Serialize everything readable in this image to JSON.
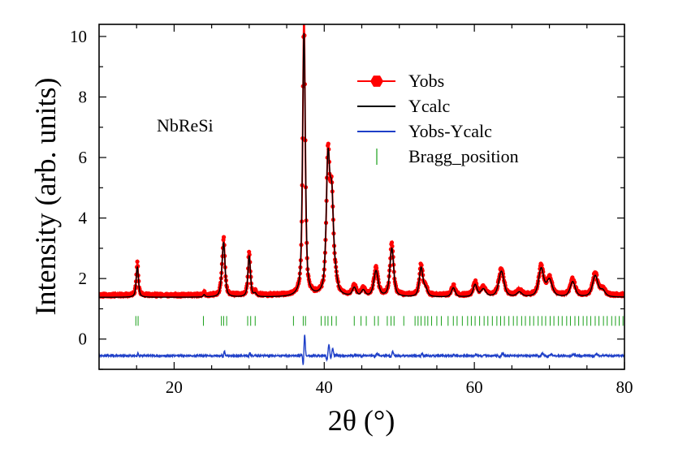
{
  "chart_data": {
    "type": "line",
    "title": "",
    "xlabel": "2θ (°)",
    "ylabel": "Intensity (arb. units)",
    "xlim": [
      10,
      80
    ],
    "ylim": [
      -1,
      10.4
    ],
    "xticks": [
      20,
      40,
      60,
      80
    ],
    "yticks": [
      0,
      2,
      4,
      6,
      8,
      10
    ],
    "annotation": "NbReSi",
    "legend_position": "top-right",
    "baseline": {
      "obs": 1.45,
      "calc": 1.38,
      "diff": -0.55
    },
    "peaks": [
      {
        "x": 15.1,
        "height": 1.0,
        "width": 0.18
      },
      {
        "x": 24.0,
        "height": 0.08,
        "width": 0.15
      },
      {
        "x": 26.3,
        "height": 0.2,
        "width": 0.2
      },
      {
        "x": 26.6,
        "height": 1.75,
        "width": 0.22
      },
      {
        "x": 30.0,
        "height": 1.35,
        "width": 0.2
      },
      {
        "x": 30.8,
        "height": 0.1,
        "width": 0.2
      },
      {
        "x": 37.3,
        "height": 8.7,
        "width": 0.22
      },
      {
        "x": 40.5,
        "height": 4.3,
        "width": 0.28
      },
      {
        "x": 41.0,
        "height": 2.9,
        "width": 0.28
      },
      {
        "x": 41.5,
        "height": 0.4,
        "width": 0.3
      },
      {
        "x": 44.0,
        "height": 0.28,
        "width": 0.3
      },
      {
        "x": 45.2,
        "height": 0.2,
        "width": 0.3
      },
      {
        "x": 46.9,
        "height": 0.85,
        "width": 0.35
      },
      {
        "x": 49.0,
        "height": 1.6,
        "width": 0.3
      },
      {
        "x": 52.9,
        "height": 0.95,
        "width": 0.28
      },
      {
        "x": 53.5,
        "height": 0.25,
        "width": 0.3
      },
      {
        "x": 57.2,
        "height": 0.3,
        "width": 0.3
      },
      {
        "x": 60.1,
        "height": 0.4,
        "width": 0.3
      },
      {
        "x": 61.2,
        "height": 0.25,
        "width": 0.4
      },
      {
        "x": 63.6,
        "height": 0.85,
        "width": 0.42
      },
      {
        "x": 66.0,
        "height": 0.15,
        "width": 0.4
      },
      {
        "x": 68.9,
        "height": 0.92,
        "width": 0.4
      },
      {
        "x": 70.0,
        "height": 0.55,
        "width": 0.45
      },
      {
        "x": 73.1,
        "height": 0.5,
        "width": 0.4
      },
      {
        "x": 76.1,
        "height": 0.7,
        "width": 0.42
      },
      {
        "x": 77.1,
        "height": 0.2,
        "width": 0.4
      }
    ],
    "bragg_y": 0.6,
    "bragg_positions": [
      14.9,
      15.2,
      23.9,
      26.3,
      26.6,
      27.0,
      29.8,
      30.2,
      30.8,
      35.9,
      37.2,
      37.5,
      39.6,
      40.1,
      40.5,
      41.0,
      41.6,
      44.0,
      44.9,
      45.6,
      46.7,
      47.2,
      48.4,
      48.9,
      49.3,
      50.6,
      52.1,
      52.5,
      52.9,
      53.4,
      53.8,
      54.3,
      55.0,
      55.6,
      56.5,
      57.2,
      57.7,
      58.4,
      59.1,
      59.6,
      60.1,
      60.7,
      61.3,
      61.8,
      62.4,
      63.0,
      63.5,
      64.0,
      64.6,
      65.2,
      65.7,
      66.3,
      66.8,
      67.4,
      67.9,
      68.5,
      69.0,
      69.5,
      70.1,
      70.6,
      71.2,
      71.7,
      72.3,
      72.8,
      73.4,
      73.9,
      74.5,
      75.0,
      75.5,
      76.1,
      76.6,
      77.2,
      77.7,
      78.3,
      78.8,
      79.3,
      79.8
    ],
    "series": [
      {
        "name": "Yobs",
        "color": "#ff0000",
        "marker": "hexagon"
      },
      {
        "name": "Ycalc",
        "color": "#000000"
      },
      {
        "name": "Yobs-Ycalc",
        "color": "#1e3fc8"
      },
      {
        "name": "Bragg_position",
        "color": "#1aa01a",
        "marker": "vertical-tick"
      }
    ]
  }
}
